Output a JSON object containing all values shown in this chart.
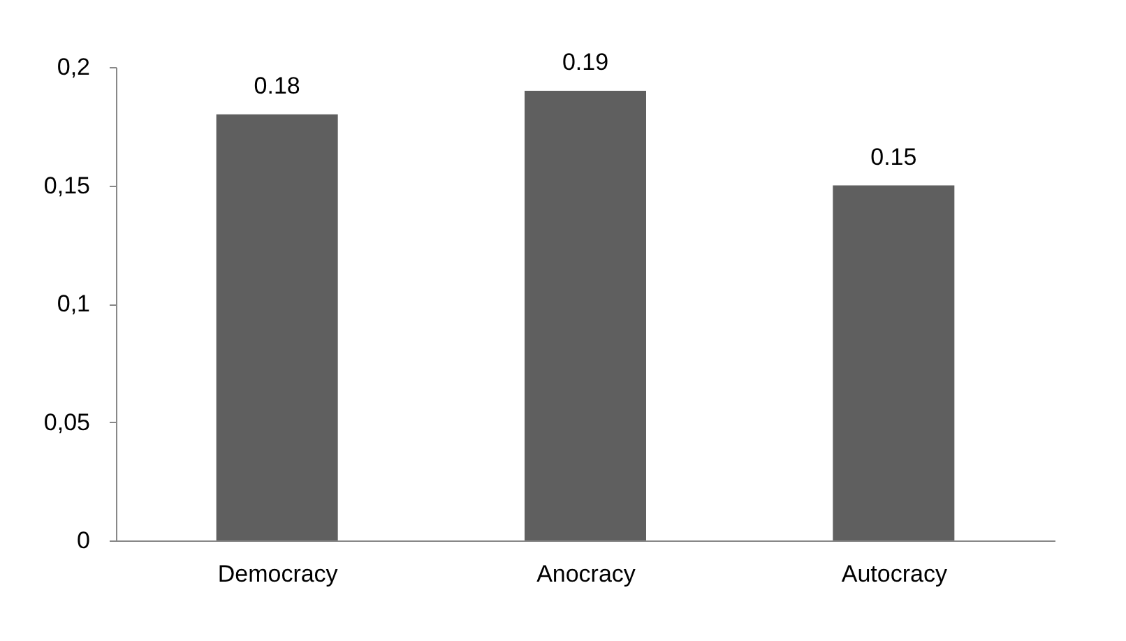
{
  "chart_data": {
    "type": "bar",
    "categories": [
      "Democracy",
      "Anocracy",
      "Autocracy"
    ],
    "values": [
      0.18,
      0.19,
      0.15
    ],
    "color": "#5f5f5f",
    "ylim": [
      0,
      0.2
    ],
    "yticks": [
      0,
      {
        "value": 0.05,
        "label": "0,05"
      },
      {
        "value": 0.1,
        "label": "0,1"
      },
      {
        "value": 0.15,
        "label": "0,15"
      },
      {
        "value": 0.2,
        "label": "0,2"
      }
    ],
    "grid": false,
    "data_labels": true
  }
}
